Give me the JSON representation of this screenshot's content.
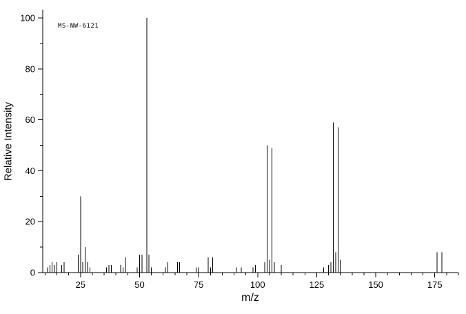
{
  "figure": {
    "annotation": "MS-NW-6121"
  },
  "chart_data": {
    "type": "bar",
    "subtype": "mass-spectrum",
    "title": "",
    "xlabel": "m/z",
    "ylabel": "Relative Intensity",
    "xlim": [
      9,
      185
    ],
    "ylim": [
      0,
      100
    ],
    "x_major_ticks": [
      25,
      50,
      75,
      100,
      125,
      150,
      175
    ],
    "x_minor_tick_step": 5,
    "y_major_ticks": [
      0,
      20,
      40,
      60,
      80,
      100
    ],
    "y_minor_tick_step": 10,
    "grid": false,
    "legend": "none",
    "annotation": "MS-NW-6121",
    "peaks": [
      [
        11,
        2
      ],
      [
        12,
        3
      ],
      [
        13,
        4
      ],
      [
        14,
        3
      ],
      [
        15,
        4
      ],
      [
        17,
        3
      ],
      [
        18,
        4
      ],
      [
        24,
        7
      ],
      [
        25,
        30
      ],
      [
        26,
        4
      ],
      [
        27,
        10
      ],
      [
        28,
        4
      ],
      [
        29,
        2
      ],
      [
        36,
        2
      ],
      [
        37,
        3
      ],
      [
        38,
        3
      ],
      [
        42,
        3
      ],
      [
        43,
        2
      ],
      [
        44,
        6
      ],
      [
        49,
        2
      ],
      [
        50,
        7
      ],
      [
        51,
        7
      ],
      [
        53,
        100
      ],
      [
        54,
        7
      ],
      [
        55,
        2
      ],
      [
        61,
        2
      ],
      [
        62,
        4
      ],
      [
        66,
        4
      ],
      [
        67,
        4
      ],
      [
        74,
        2
      ],
      [
        75,
        2
      ],
      [
        79,
        6
      ],
      [
        80,
        2
      ],
      [
        81,
        6
      ],
      [
        91,
        2
      ],
      [
        93,
        2
      ],
      [
        98,
        2
      ],
      [
        99,
        3
      ],
      [
        103,
        4
      ],
      [
        104,
        50
      ],
      [
        105,
        5
      ],
      [
        106,
        49
      ],
      [
        107,
        4
      ],
      [
        110,
        3
      ],
      [
        128,
        2
      ],
      [
        130,
        3
      ],
      [
        131,
        4
      ],
      [
        132,
        59
      ],
      [
        133,
        8
      ],
      [
        134,
        57
      ],
      [
        135,
        5
      ],
      [
        176,
        8
      ],
      [
        178,
        8
      ]
    ]
  },
  "colors": {
    "background": "#ffffff",
    "axis": "#000000",
    "peak": "#000000",
    "text": "#000000"
  }
}
